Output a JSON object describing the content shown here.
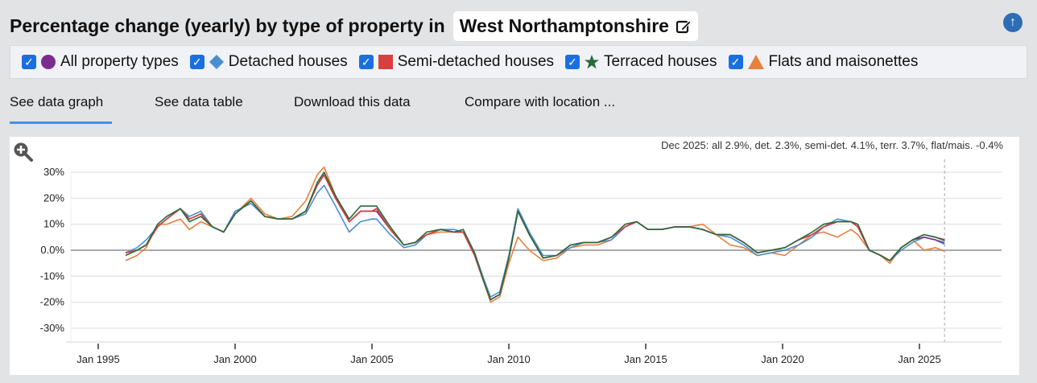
{
  "header": {
    "title": "Percentage change (yearly) by type of property in",
    "location": "West Northamptonshire",
    "edit_icon": "pencil-square-icon",
    "scroll_top_icon": "arrow-up-circle-icon"
  },
  "legend": [
    {
      "label": "All property types",
      "color": "#7b2d8e",
      "marker": "circle",
      "checked": true
    },
    {
      "label": "Detached houses",
      "color": "#4a90d0",
      "marker": "diamond",
      "checked": true
    },
    {
      "label": "Semi-detached houses",
      "color": "#d8403f",
      "marker": "square",
      "checked": true
    },
    {
      "label": "Terraced houses",
      "color": "#2a6b3a",
      "marker": "star",
      "checked": true
    },
    {
      "label": "Flats and maisonettes",
      "color": "#e8803e",
      "marker": "triangle",
      "checked": true
    }
  ],
  "tabs": [
    {
      "label": "See data graph",
      "active": true
    },
    {
      "label": "See data table"
    },
    {
      "label": "Download this data"
    },
    {
      "label": "Compare with location ..."
    }
  ],
  "chart_data": {
    "type": "line",
    "annotation": "Dec 2025: all 2.9%, det. 2.3%, semi-det. 4.1%, terr. 3.7%, flat/mais. -0.4%",
    "ylim": [
      -35,
      35
    ],
    "yticks": [
      "30%",
      "20%",
      "10%",
      "0.0%",
      "-10%",
      "-20%",
      "-30%"
    ],
    "ytick_values": [
      30,
      20,
      10,
      0,
      -10,
      -20,
      -30
    ],
    "xticks": [
      "Jan 1995",
      "Jan 2000",
      "Jan 2005",
      "Jan 2010",
      "Jan 2015",
      "Jan 2020",
      "Jan 2025"
    ],
    "xlim": [
      "1994-01",
      "2028-01"
    ],
    "grid": true,
    "x": [
      "1996-01",
      "1996-06",
      "1996-10",
      "1997-03",
      "1997-07",
      "1998-01",
      "1998-05",
      "1998-10",
      "1999-03",
      "1999-08",
      "2000-01",
      "2000-08",
      "2001-02",
      "2001-08",
      "2002-02",
      "2002-08",
      "2003-01",
      "2003-04",
      "2003-09",
      "2004-03",
      "2004-08",
      "2005-01",
      "2005-03",
      "2005-09",
      "2006-03",
      "2006-08",
      "2007-01",
      "2007-07",
      "2008-01",
      "2008-05",
      "2008-10",
      "2009-02",
      "2009-05",
      "2009-09",
      "2010-01",
      "2010-05",
      "2010-10",
      "2011-04",
      "2011-10",
      "2012-04",
      "2012-10",
      "2013-04",
      "2013-10",
      "2014-04",
      "2014-09",
      "2015-02",
      "2015-08",
      "2016-02",
      "2016-08",
      "2017-02",
      "2017-08",
      "2018-02",
      "2018-08",
      "2019-02",
      "2019-08",
      "2020-02",
      "2020-08",
      "2021-02",
      "2021-07",
      "2022-01",
      "2022-07",
      "2022-10",
      "2023-03",
      "2023-08",
      "2023-12",
      "2024-05",
      "2024-10",
      "2025-03",
      "2025-08",
      "2025-12"
    ],
    "series": [
      {
        "name": "Flats and maisonettes",
        "color": "#e8803e",
        "values": [
          -4,
          -2,
          1,
          10,
          10,
          12,
          8,
          11,
          9,
          7,
          14,
          20,
          14,
          12,
          13,
          19,
          29,
          32,
          21,
          11,
          15,
          15,
          16,
          8,
          2,
          3,
          6,
          7,
          7,
          7,
          -2,
          -12,
          -20,
          -18,
          -5,
          5,
          0,
          -4,
          -3,
          1,
          2,
          2,
          4,
          9,
          11,
          8,
          8,
          9,
          9,
          10,
          6,
          2,
          1,
          -2,
          -1,
          -2,
          2,
          6,
          7,
          5,
          8,
          6,
          0,
          -2,
          -5,
          1,
          4,
          0,
          1,
          -0.4
        ]
      },
      {
        "name": "Detached houses",
        "color": "#4a90d0",
        "values": [
          -1,
          1,
          4,
          9,
          12,
          16,
          13,
          15,
          9,
          7,
          15,
          18,
          13,
          12,
          12,
          14,
          22,
          25,
          17,
          7,
          11,
          12,
          12,
          6,
          1,
          2,
          6,
          8,
          8,
          7,
          -1,
          -11,
          -18,
          -16,
          -2,
          16,
          7,
          -2,
          -2,
          1,
          3,
          3,
          4,
          9,
          11,
          8,
          8,
          9,
          9,
          8,
          6,
          5,
          2,
          -2,
          -1,
          0,
          2,
          5,
          9,
          12,
          11,
          9,
          0,
          -2,
          -4,
          0,
          3,
          5,
          4,
          2.3
        ]
      },
      {
        "name": "All property types",
        "color": "#7b2d8e",
        "values": [
          -1,
          0,
          2,
          9,
          12,
          16,
          12,
          14,
          9,
          7,
          14,
          19,
          13,
          12,
          12,
          15,
          25,
          29,
          20,
          11,
          15,
          15,
          15,
          8,
          2,
          3,
          6,
          8,
          7,
          7,
          -2,
          -12,
          -19,
          -17,
          -3,
          15,
          6,
          -3,
          -2,
          2,
          3,
          3,
          5,
          9,
          11,
          8,
          8,
          9,
          9,
          8,
          6,
          6,
          3,
          -1,
          0,
          1,
          4,
          6,
          9,
          11,
          11,
          9,
          0,
          -2,
          -4,
          1,
          4,
          5,
          4,
          2.9
        ]
      },
      {
        "name": "Semi-detached houses",
        "color": "#d8403f",
        "values": [
          -1,
          0,
          2,
          9,
          12,
          16,
          12,
          14,
          9,
          7,
          14,
          19,
          13,
          12,
          12,
          15,
          25,
          29,
          20,
          11,
          15,
          15,
          16,
          8,
          2,
          3,
          6,
          8,
          7,
          7,
          -2,
          -12,
          -19,
          -17,
          -3,
          15,
          6,
          -3,
          -2,
          2,
          3,
          3,
          5,
          9,
          11,
          8,
          8,
          9,
          9,
          8,
          6,
          6,
          3,
          -1,
          0,
          1,
          4,
          6,
          9,
          11,
          11,
          9,
          0,
          -2,
          -4,
          1,
          4,
          6,
          5,
          4.1
        ]
      },
      {
        "name": "Terraced houses",
        "color": "#2a6b3a",
        "values": [
          -2,
          0,
          2,
          10,
          13,
          16,
          11,
          13,
          9,
          7,
          14,
          19,
          13,
          12,
          12,
          15,
          26,
          30,
          21,
          12,
          17,
          17,
          17,
          9,
          2,
          3,
          7,
          8,
          7,
          8,
          -1,
          -12,
          -19,
          -17,
          -3,
          15,
          6,
          -3,
          -2,
          2,
          3,
          3,
          5,
          10,
          11,
          8,
          8,
          9,
          9,
          8,
          6,
          6,
          3,
          -1,
          0,
          1,
          4,
          7,
          10,
          11,
          11,
          10,
          0,
          -2,
          -4,
          1,
          4,
          6,
          5,
          3.7
        ]
      }
    ]
  }
}
